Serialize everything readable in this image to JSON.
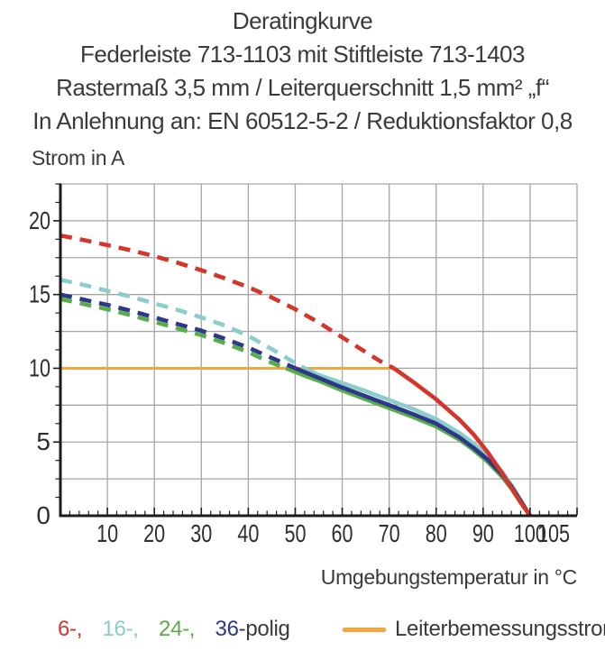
{
  "header": {
    "line1": "Deratingkurve",
    "line2": "Federleiste 713-1103 mit Stiftleiste 713-1403",
    "line3": "Rastermaß 3,5 mm / Leiterquerschnitt 1,5 mm² „f“",
    "line4": "In Anlehnung an: EN 60512-5-2 / Reduktionsfaktor 0,8"
  },
  "axes": {
    "y_title": "Strom in A",
    "x_title": "Umgebungstemperatur in °C"
  },
  "legend": {
    "poles": [
      {
        "label": "6-,",
        "color": "#d5352a"
      },
      {
        "label": "16-,",
        "color": "#8bcdca"
      },
      {
        "label": "24-,",
        "color": "#57ae49"
      },
      {
        "label": "36",
        "color": "#2e3789"
      }
    ],
    "poles_suffix": "-polig",
    "rated_label": "Leiterbemessungsstrom",
    "rated_color": "#f2a73e"
  },
  "chart_data": {
    "type": "line",
    "title": "Deratingkurve",
    "subtitle": [
      "Federleiste 713-1103 mit Stiftleiste 713-1403",
      "Rastermaß 3,5 mm / Leiterquerschnitt 1,5 mm² „f“",
      "In Anlehnung an: EN 60512-5-2 / Reduktionsfaktor 0,8"
    ],
    "xlabel": "Umgebungstemperatur in °C",
    "ylabel": "Strom in A",
    "xlim": [
      0,
      110
    ],
    "ylim": [
      0,
      22.5
    ],
    "x_tick_labels": [
      10,
      20,
      30,
      40,
      50,
      60,
      70,
      80,
      90,
      100,
      105
    ],
    "y_tick_labels": [
      0,
      5,
      10,
      15,
      20
    ],
    "x_grid_step": 10,
    "y_grid_step": 2.5,
    "x_minor_tick_step": 2,
    "y_minor_tick_step": 1.25,
    "grid_color": "#a6a6a6",
    "axis_color": "#1c1c1c",
    "tick_label_color": "#2d2d2d",
    "legend_position": "bottom",
    "note": "curves dashed above rated current, solid below; all converge to 0 A at 100 °C",
    "rated_line": {
      "label": "Leiterbemessungsstrom",
      "color": "#f2a73e",
      "y": 10,
      "x_range": [
        0,
        71
      ]
    },
    "draw_order": [
      "24-polig",
      "16-polig",
      "36-polig",
      "6-polig"
    ],
    "series": [
      {
        "name": "6-polig",
        "color": "#d5352a",
        "solid_from_x": 71,
        "points": [
          [
            0,
            19
          ],
          [
            5,
            18.7
          ],
          [
            10,
            18.35
          ],
          [
            15,
            18
          ],
          [
            20,
            17.6
          ],
          [
            25,
            17.15
          ],
          [
            30,
            16.65
          ],
          [
            35,
            16.1
          ],
          [
            40,
            15.5
          ],
          [
            45,
            14.8
          ],
          [
            50,
            14
          ],
          [
            55,
            13.1
          ],
          [
            60,
            12.1
          ],
          [
            65,
            11.1
          ],
          [
            68,
            10.5
          ],
          [
            71,
            10
          ],
          [
            75,
            9.1
          ],
          [
            80,
            7.9
          ],
          [
            85,
            6.5
          ],
          [
            88,
            5.5
          ],
          [
            91,
            4.3
          ],
          [
            94,
            2.9
          ],
          [
            96,
            1.9
          ],
          [
            98,
            0.9
          ],
          [
            99,
            0.45
          ],
          [
            100,
            0
          ]
        ]
      },
      {
        "name": "16-polig",
        "color": "#8bcdca",
        "solid_from_x": 52,
        "points": [
          [
            0,
            16
          ],
          [
            5,
            15.65
          ],
          [
            10,
            15.25
          ],
          [
            15,
            14.85
          ],
          [
            20,
            14.4
          ],
          [
            25,
            13.95
          ],
          [
            30,
            13.45
          ],
          [
            35,
            12.9
          ],
          [
            40,
            12.2
          ],
          [
            45,
            11.3
          ],
          [
            50,
            10.35
          ],
          [
            52,
            10
          ],
          [
            55,
            9.55
          ],
          [
            60,
            9
          ],
          [
            65,
            8.45
          ],
          [
            70,
            7.85
          ],
          [
            75,
            7.25
          ],
          [
            80,
            6.55
          ],
          [
            85,
            5.6
          ],
          [
            88,
            4.9
          ],
          [
            91,
            4.05
          ],
          [
            94,
            3
          ],
          [
            96,
            2.1
          ],
          [
            98,
            1.05
          ],
          [
            99,
            0.5
          ],
          [
            100,
            0
          ]
        ]
      },
      {
        "name": "24-polig",
        "color": "#57ae49",
        "solid_from_x": 48,
        "points": [
          [
            0,
            14.7
          ],
          [
            5,
            14.35
          ],
          [
            10,
            14
          ],
          [
            15,
            13.6
          ],
          [
            20,
            13.15
          ],
          [
            25,
            12.7
          ],
          [
            30,
            12.25
          ],
          [
            35,
            11.7
          ],
          [
            40,
            11.1
          ],
          [
            44,
            10.5
          ],
          [
            48,
            10
          ],
          [
            52,
            9.5
          ],
          [
            55,
            9.15
          ],
          [
            60,
            8.5
          ],
          [
            65,
            7.9
          ],
          [
            70,
            7.3
          ],
          [
            75,
            6.7
          ],
          [
            80,
            6.05
          ],
          [
            85,
            5.15
          ],
          [
            88,
            4.45
          ],
          [
            91,
            3.65
          ],
          [
            94,
            2.65
          ],
          [
            96,
            1.85
          ],
          [
            98,
            0.9
          ],
          [
            99,
            0.45
          ],
          [
            100,
            0
          ]
        ]
      },
      {
        "name": "36-polig",
        "color": "#2e3789",
        "solid_from_x": 50,
        "points": [
          [
            0,
            15
          ],
          [
            5,
            14.65
          ],
          [
            10,
            14.3
          ],
          [
            15,
            13.9
          ],
          [
            20,
            13.45
          ],
          [
            25,
            13
          ],
          [
            30,
            12.55
          ],
          [
            35,
            12
          ],
          [
            40,
            11.4
          ],
          [
            45,
            10.7
          ],
          [
            50,
            10
          ],
          [
            55,
            9.35
          ],
          [
            60,
            8.7
          ],
          [
            65,
            8.1
          ],
          [
            70,
            7.5
          ],
          [
            75,
            6.9
          ],
          [
            80,
            6.25
          ],
          [
            85,
            5.3
          ],
          [
            88,
            4.6
          ],
          [
            91,
            3.8
          ],
          [
            94,
            2.8
          ],
          [
            96,
            2
          ],
          [
            98,
            1
          ],
          [
            99,
            0.5
          ],
          [
            100,
            0
          ]
        ]
      }
    ]
  }
}
